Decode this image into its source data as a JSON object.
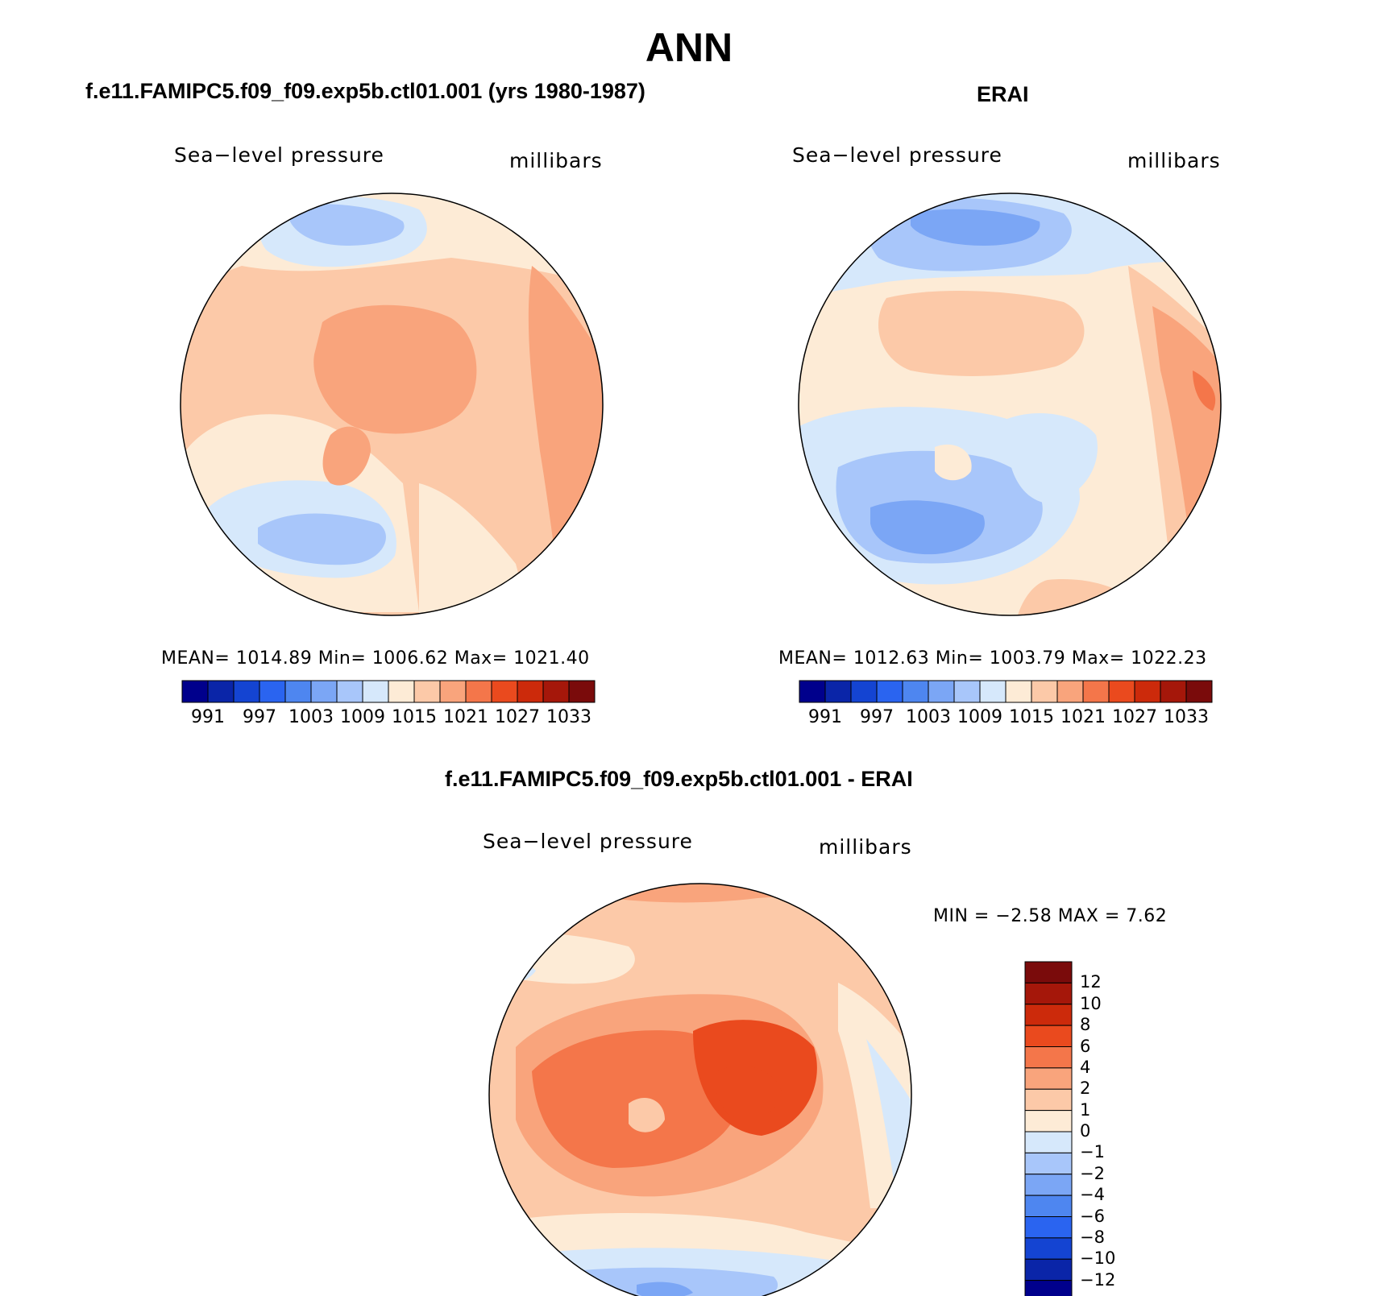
{
  "title": "ANN",
  "panels": [
    {
      "subtitle": "f.e11.FAMIPC5.f09_f09.exp5b.ctl01.001 (yrs 1980-1987)",
      "field": "Sea−level pressure",
      "units": "millibars",
      "stats": "MEAN= 1014.89   Min= 1006.62   Max= 1021.40"
    },
    {
      "subtitle": "ERAI",
      "field": "Sea−level pressure",
      "units": "millibars",
      "stats": "MEAN= 1012.63   Min= 1003.79   Max= 1022.23"
    },
    {
      "subtitle": "f.e11.FAMIPC5.f09_f09.exp5b.ctl01.001 - ERAI",
      "field": "Sea−level pressure",
      "units": "millibars",
      "stats": "MIN =   −2.58 MAX =    7.62"
    }
  ],
  "colorbar_abs": {
    "colors": [
      "#00008c",
      "#0a25a8",
      "#1444d2",
      "#2a64f0",
      "#4e86f0",
      "#7ba6f5",
      "#a8c6fa",
      "#d6e8fb",
      "#fdebd6",
      "#fcc9a8",
      "#f9a47c",
      "#f4764a",
      "#ea4a1e",
      "#cc2a0b",
      "#a5170a",
      "#7a0b0b"
    ],
    "labels": [
      "991",
      "997",
      "1003",
      "1009",
      "1015",
      "1021",
      "1027",
      "1033"
    ]
  },
  "colorbar_diff": {
    "colors": [
      "#00008c",
      "#0a25a8",
      "#1444d2",
      "#2a64f0",
      "#4e86f0",
      "#7ba6f5",
      "#a8c6fa",
      "#d6e8fb",
      "#fdebd6",
      "#fcc9a8",
      "#f9a47c",
      "#f4764a",
      "#ea4a1e",
      "#cc2a0b",
      "#a5170a",
      "#7a0b0b"
    ],
    "labels": [
      "12",
      "10",
      "8",
      "6",
      "4",
      "2",
      "1",
      "0",
      "−1",
      "−2",
      "−4",
      "−6",
      "−8",
      "−10",
      "−12"
    ]
  }
}
